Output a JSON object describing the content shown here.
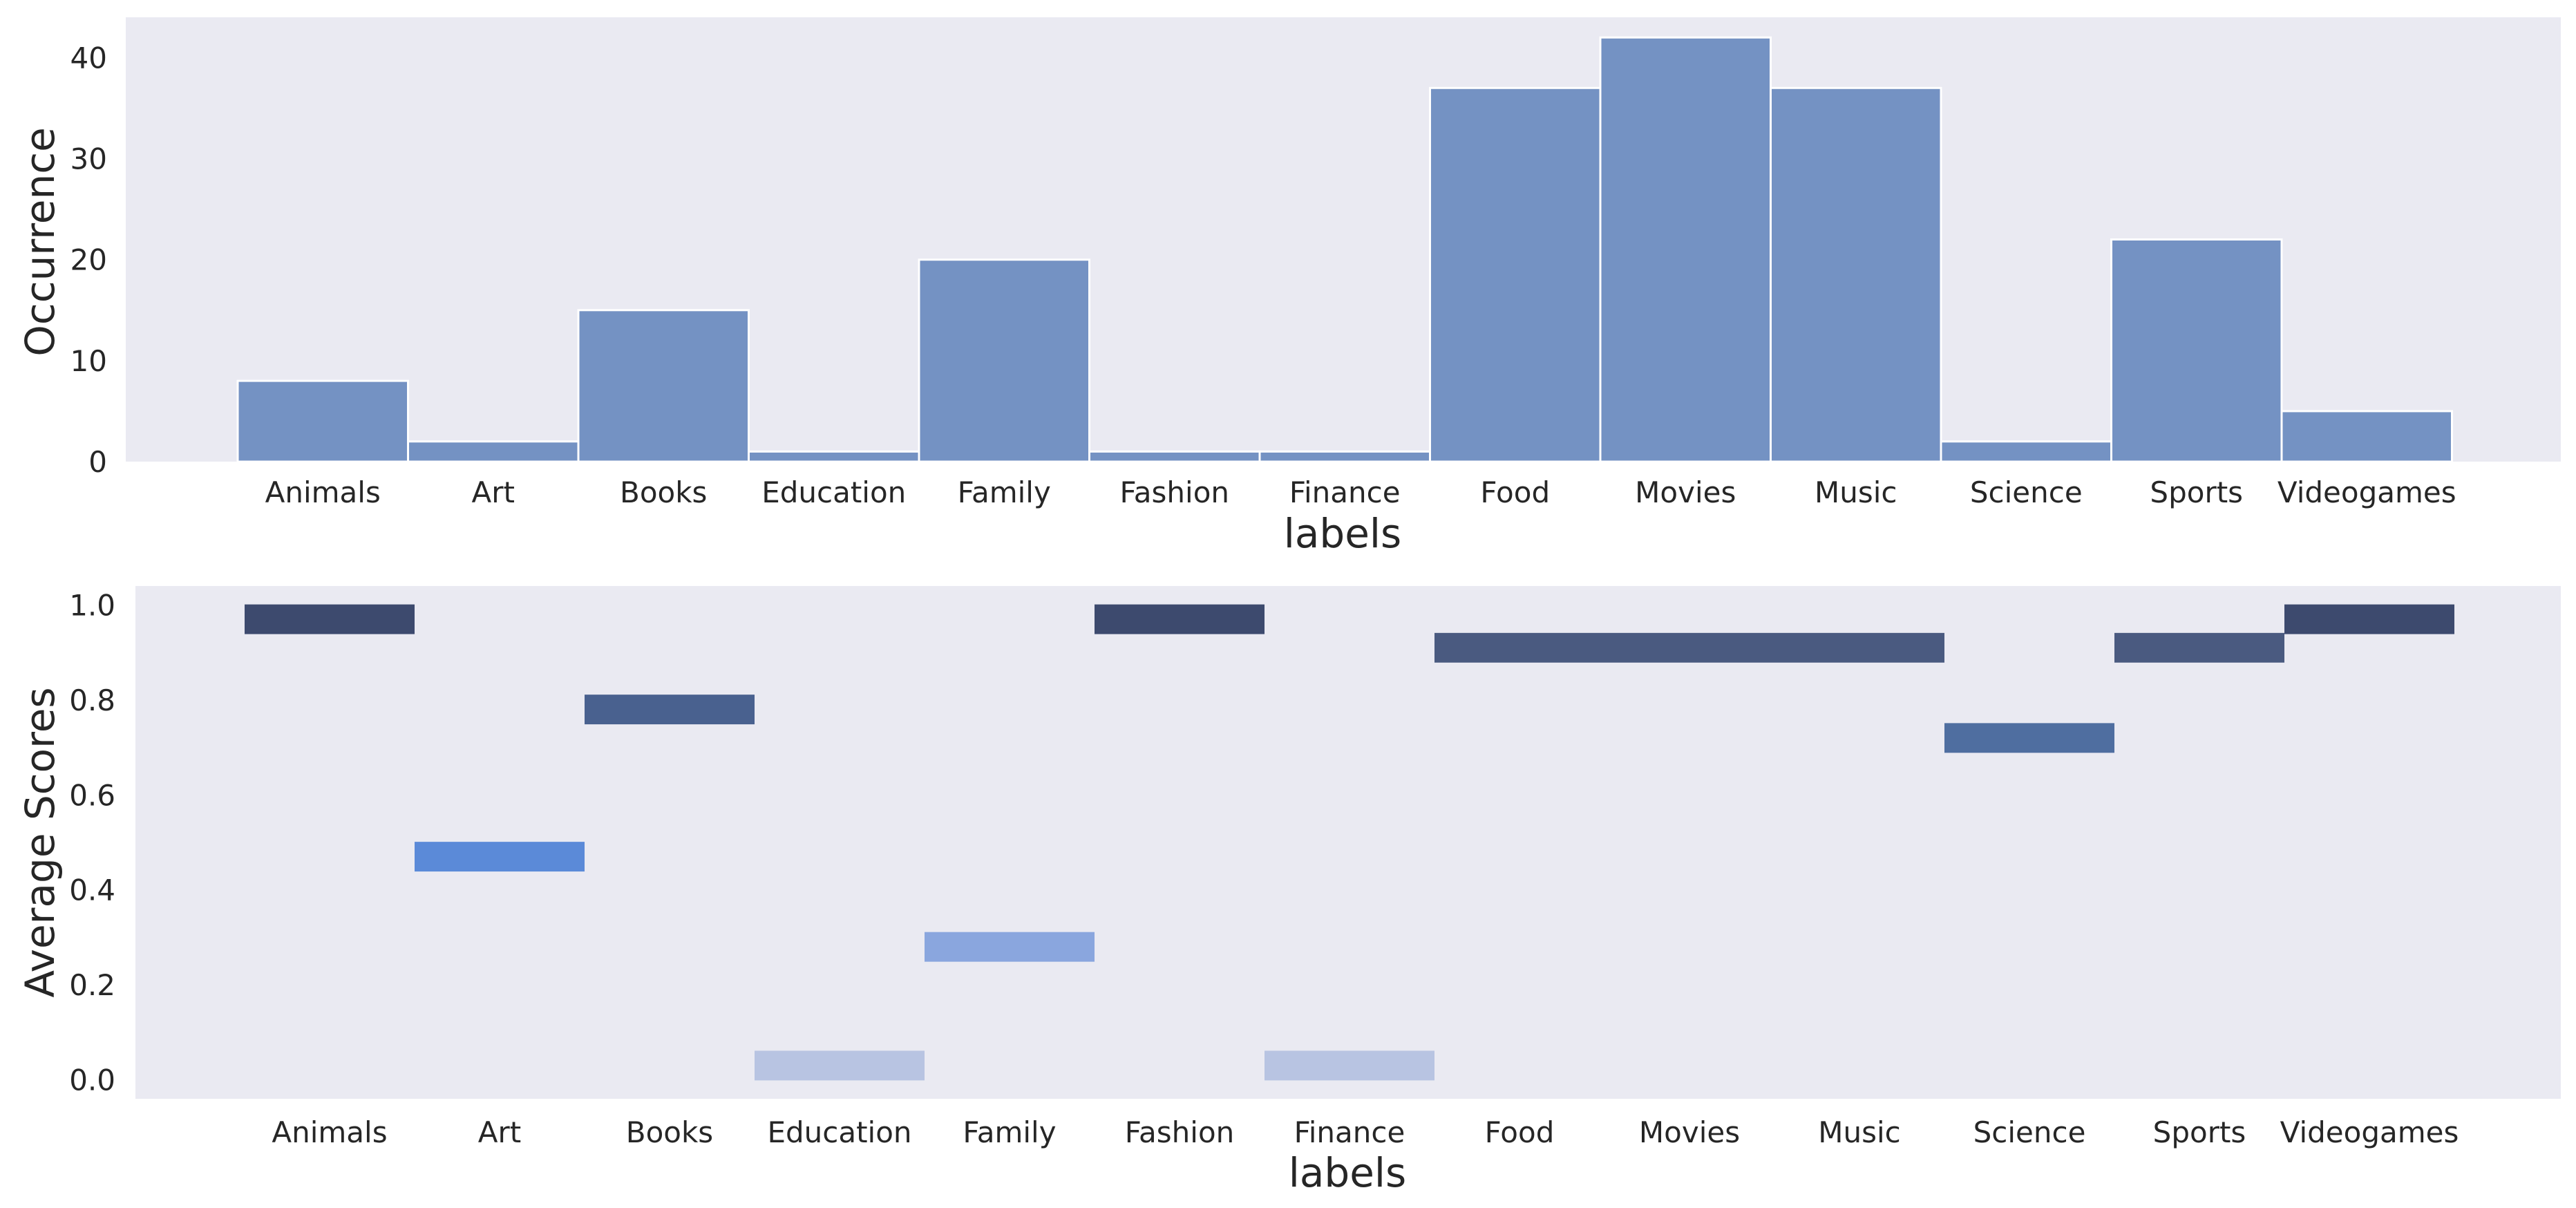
{
  "chart_data": [
    {
      "type": "bar",
      "subplot": "top",
      "xlabel": "labels",
      "ylabel": "Occurrence",
      "ylim": [
        0,
        44
      ],
      "yticks": [
        0,
        10,
        20,
        30,
        40
      ],
      "grid": false,
      "categories": [
        "Animals",
        "Art",
        "Books",
        "Education",
        "Family",
        "Fashion",
        "Finance",
        "Food",
        "Movies",
        "Music",
        "Science",
        "Sports",
        "Videogames"
      ],
      "values": [
        8,
        2,
        15,
        1,
        20,
        1,
        1,
        37,
        42,
        37,
        2,
        22,
        5
      ],
      "colors": {
        "bar": "#7492c3",
        "bar_edge": "#ffffff",
        "background": "#eaeaf2"
      }
    },
    {
      "type": "heatmap",
      "subplot": "bottom",
      "xlabel": "labels",
      "ylabel": "Average Scores",
      "ylim": [
        -0.04,
        1.04
      ],
      "yticks": [
        0.0,
        0.2,
        0.4,
        0.6,
        0.8,
        1.0
      ],
      "yticklabels": [
        "0.0",
        "0.2",
        "0.4",
        "0.6",
        "0.8",
        "1.0"
      ],
      "grid": false,
      "categories": [
        "Animals",
        "Art",
        "Books",
        "Education",
        "Family",
        "Fashion",
        "Finance",
        "Food",
        "Movies",
        "Music",
        "Science",
        "Sports",
        "Videogames"
      ],
      "values": [
        0.97,
        0.47,
        0.78,
        0.03,
        0.28,
        0.97,
        0.03,
        0.91,
        0.91,
        0.91,
        0.72,
        0.91,
        0.97
      ],
      "bin_height": 0.0625,
      "colors": {
        "cells": [
          "#3d4a6e",
          "#5b8ad8",
          "#49618f",
          "#b8c4e2",
          "#8aa6de",
          "#3d4a6e",
          "#b8c4e2",
          "#4a5a80",
          "#4a5a80",
          "#4a5a80",
          "#4f6ea0",
          "#4a5a80",
          "#3d4a6e"
        ],
        "background": "#eaeaf2"
      }
    }
  ]
}
